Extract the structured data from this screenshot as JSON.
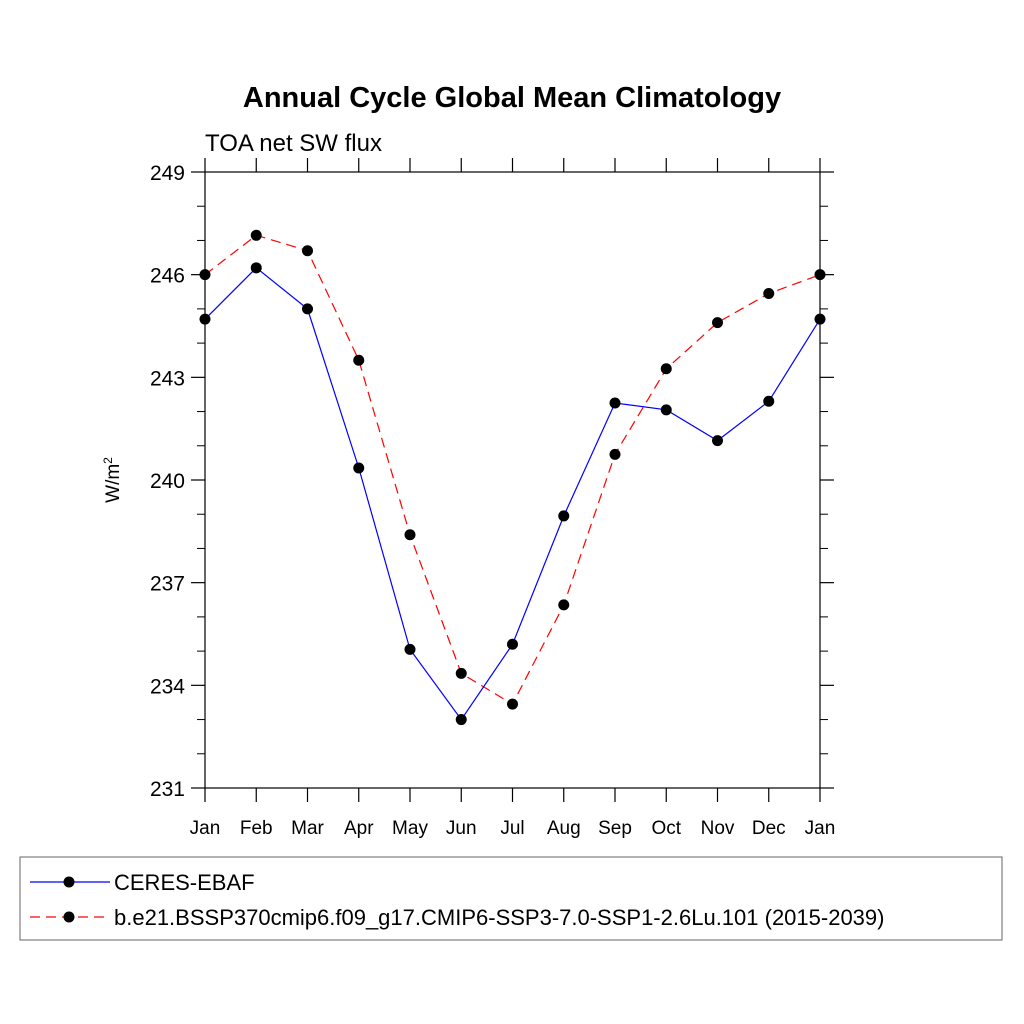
{
  "chart_data": {
    "type": "line",
    "title": "Annual Cycle Global Mean Climatology",
    "subtitle": "TOA net SW flux",
    "ylabel": "W/m",
    "ylabel_superscript": "2",
    "ylim": [
      231,
      249
    ],
    "yticks": [
      "231",
      "234",
      "237",
      "240",
      "243",
      "246",
      "249"
    ],
    "categories": [
      "Jan",
      "Feb",
      "Mar",
      "Apr",
      "May",
      "Jun",
      "Jul",
      "Aug",
      "Sep",
      "Oct",
      "Nov",
      "Dec",
      "Jan"
    ],
    "grid": false,
    "legend_position": "bottom",
    "series": [
      {
        "name": "CERES-EBAF",
        "color": "#0000ff",
        "dash": "solid",
        "values": [
          244.7,
          246.2,
          245.0,
          240.35,
          235.05,
          233.0,
          235.2,
          238.95,
          242.25,
          242.05,
          241.15,
          242.3,
          244.7
        ]
      },
      {
        "name": "b.e21.BSSP370cmip6.f09_g17.CMIP6-SSP3-7.0-SSP1-2.6Lu.101 (2015-2039)",
        "color": "#ff0000",
        "dash": "dashed",
        "values": [
          246.0,
          247.15,
          246.7,
          243.5,
          238.4,
          234.35,
          233.45,
          236.35,
          240.75,
          243.25,
          244.6,
          245.45,
          246.0
        ]
      }
    ]
  }
}
